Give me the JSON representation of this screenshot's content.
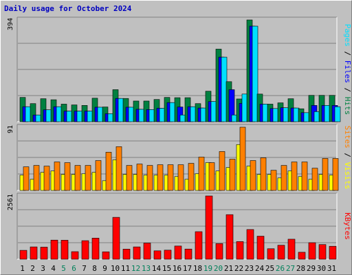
{
  "chart_data": {
    "type": "bar",
    "title": "Daily usage for October 2024",
    "categories": [
      "1",
      "2",
      "3",
      "4",
      "5",
      "6",
      "7",
      "8",
      "9",
      "10",
      "11",
      "12",
      "13",
      "14",
      "15",
      "16",
      "17",
      "18",
      "19",
      "20",
      "21",
      "22",
      "23",
      "24",
      "25",
      "26",
      "27",
      "28",
      "29",
      "30",
      "31"
    ],
    "weekend_categories": [
      "5",
      "6",
      "12",
      "13",
      "19",
      "20",
      "26",
      "27"
    ],
    "panels": [
      {
        "id": "hits-files-pages",
        "ymax_label": "394",
        "ymax": 394,
        "right_label": [
          {
            "text": "Pages",
            "color": "#00e0ff"
          },
          {
            "text": " / ",
            "color": "#000000"
          },
          {
            "text": "Files",
            "color": "#0000ff"
          },
          {
            "text": " / ",
            "color": "#000000"
          },
          {
            "text": "Hits",
            "color": "#008040"
          }
        ],
        "series": [
          {
            "name": "Hits",
            "color": "#008040",
            "values": [
              94,
              70,
              89,
              85,
              68,
              65,
              63,
              91,
              57,
              124,
              90,
              80,
              80,
              86,
              94,
              93,
              93,
              70,
              118,
              281,
              155,
              88,
              394,
              107,
              68,
              73,
              89,
              50,
              102,
              102,
              102
            ]
          },
          {
            "name": "Files",
            "color": "#0000ff",
            "values": [
              58,
              26,
              46,
              58,
              41,
              41,
              41,
              56,
              31,
              90,
              56,
              48,
              47,
              52,
              74,
              57,
              58,
              53,
              78,
              250,
              124,
              71,
              370,
              68,
              51,
              54,
              53,
              35,
              63,
              63,
              63
            ]
          },
          {
            "name": "Pages",
            "color": "#00e0ff",
            "values": [
              58,
              26,
              46,
              58,
              41,
              41,
              41,
              56,
              31,
              90,
              56,
              48,
              47,
              52,
              74,
              26,
              58,
              53,
              78,
              250,
              26,
              107,
              370,
              68,
              51,
              54,
              53,
              35,
              39,
              63,
              58
            ]
          }
        ]
      },
      {
        "id": "visits-sites",
        "ymax_label": "91",
        "ymax": 91,
        "right_label": [
          {
            "text": "Sites",
            "color": "#ff8000"
          },
          {
            "text": " / ",
            "color": "#000000"
          },
          {
            "text": "Visits",
            "color": "#ffff00"
          }
        ],
        "series": [
          {
            "name": "Visits",
            "color": "#ffff00",
            "values": [
              22,
              16,
              26,
              28,
              23,
              23,
              24,
              26,
              14,
              44,
              23,
              23,
              22,
              22,
              22,
              20,
              16,
              24,
              40,
              28,
              33,
              66,
              35,
              23,
              23,
              18,
              28,
              20,
              16,
              23,
              22
            ]
          },
          {
            "name": "Sites",
            "color": "#ff8000",
            "values": [
              34,
              36,
              35,
              41,
              40,
              36,
              36,
              43,
              55,
              63,
              36,
              38,
              36,
              37,
              37,
              37,
              39,
              48,
              40,
              56,
              45,
              91,
              43,
              47,
              29,
              36,
              41,
              41,
              32,
              46,
              46
            ]
          }
        ]
      },
      {
        "id": "kbytes",
        "ymax_label": "2561",
        "ymax": 2561,
        "right_label": [
          {
            "text": "KBytes",
            "color": "#ff0000"
          }
        ],
        "series": [
          {
            "name": "KBytes",
            "color": "#ff0000",
            "values": [
              359,
              498,
              488,
              773,
              768,
              305,
              750,
              854,
              299,
              1695,
              408,
              498,
              653,
              339,
              366,
              533,
              411,
              1114,
              2561,
              632,
              1804,
              713,
              1201,
              932,
              424,
              565,
              809,
              281,
              668,
              593,
              523
            ]
          }
        ]
      }
    ]
  }
}
